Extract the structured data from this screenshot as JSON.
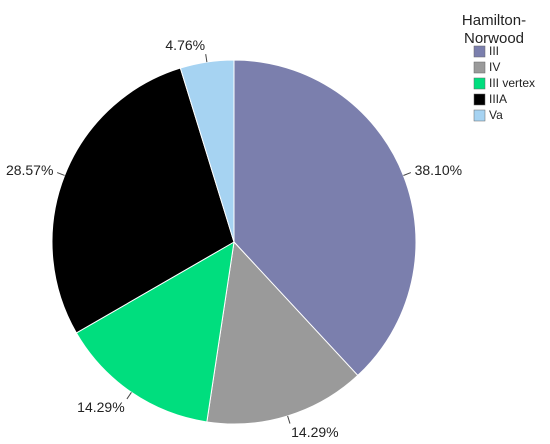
{
  "chart_data": {
    "type": "pie",
    "legend_title": "Hamilton-Norwood",
    "legend": "right",
    "categories": [
      "III",
      "IV",
      "III vertex",
      "IIIA",
      "Va"
    ],
    "values": [
      38.1,
      14.29,
      14.29,
      28.57,
      4.76
    ],
    "value_labels": [
      "38.10%",
      "14.29%",
      "14.29%",
      "28.57%",
      "4.76%"
    ],
    "colors": [
      "#7b7fad",
      "#9a9a9a",
      "#00de7e",
      "#000000",
      "#a6d3f2"
    ]
  }
}
